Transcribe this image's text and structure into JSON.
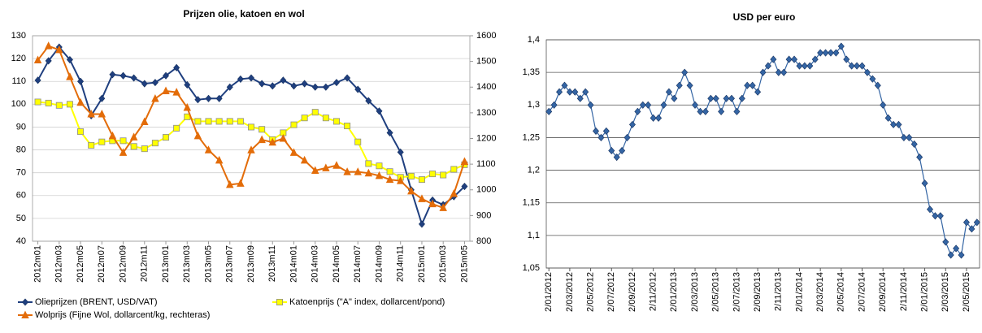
{
  "chart_data": [
    {
      "type": "line",
      "title": "Prijzen olie, katoen en wol",
      "categories": [
        "2012m01",
        null,
        "2012m03",
        null,
        "2012m05",
        null,
        "2012m07",
        null,
        "2012m09",
        null,
        "2012m11",
        null,
        "2013m01",
        null,
        "2013m03",
        null,
        "2013m05",
        null,
        "2013m07",
        null,
        "2013m09",
        null,
        "2013m11",
        null,
        "2014m01",
        null,
        "2014m03",
        null,
        "2014m05",
        null,
        "2014m07",
        null,
        "2014m09",
        null,
        "2014m11",
        null,
        "2015m01",
        null,
        "2015m03",
        null,
        "2015m05"
      ],
      "series": [
        {
          "name": "Olieprijzen (BRENT, USD/VAT)",
          "color": "#1f3f7f",
          "marker": "diamond",
          "values": [
            110.5,
            119,
            125,
            119.5,
            110,
            95,
            102.5,
            113,
            112.5,
            111.5,
            109,
            109.5,
            112.5,
            116,
            108.5,
            102,
            102.5,
            102.5,
            107.5,
            111,
            111.5,
            109,
            108,
            110.5,
            108,
            109,
            107.5,
            107.5,
            109.5,
            111.5,
            106.5,
            101.5,
            97,
            87.5,
            79,
            62.5,
            47.5,
            58,
            56,
            59.5,
            64
          ]
        },
        {
          "name": "Katoenprijs (\"A\" index, dollarcent/pond)",
          "color": "#ffff00",
          "marker": "square",
          "values": [
            101,
            100.5,
            99.5,
            100,
            88,
            82,
            83.5,
            84,
            84,
            81.5,
            80.5,
            83,
            85.5,
            89.5,
            94.5,
            92.5,
            92.5,
            92.5,
            92.5,
            92.5,
            90,
            89,
            84.5,
            87.5,
            91,
            94,
            96.5,
            94,
            92.5,
            90.5,
            83.5,
            74,
            73,
            70.5,
            68,
            68.5,
            67,
            69.5,
            69,
            71.5,
            73.5
          ]
        },
        {
          "name": "Wolprijs (Fijne Wol, dollarcent/kg, rechteras)",
          "color": "#e36c09",
          "marker": "triangle",
          "axis": "y2",
          "values": [
            1505,
            1560,
            1545,
            1440,
            1340,
            1295,
            1295,
            1210,
            1145,
            1205,
            1265,
            1355,
            1385,
            1380,
            1320,
            1210,
            1155,
            1115,
            1020,
            1025,
            1155,
            1195,
            1185,
            1200,
            1145,
            1115,
            1075,
            1085,
            1095,
            1070,
            1070,
            1065,
            1055,
            1040,
            1035,
            995,
            965,
            945,
            930,
            985,
            1110
          ]
        }
      ],
      "ylim": [
        40,
        130
      ],
      "yticks": [
        40,
        50,
        60,
        70,
        80,
        90,
        100,
        110,
        120,
        130
      ],
      "y2lim": [
        800,
        1600
      ],
      "y2ticks": [
        800,
        900,
        1000,
        1100,
        1200,
        1300,
        1400,
        1500,
        1600
      ],
      "grid": true,
      "legend": "bottom"
    },
    {
      "type": "line",
      "title": "USD per euro",
      "categories": [
        "2/01/2012",
        null,
        null,
        null,
        "2/03/2012",
        null,
        null,
        null,
        "2/05/2012",
        null,
        null,
        null,
        "2/07/2012",
        null,
        null,
        null,
        "2/09/2012",
        null,
        null,
        null,
        "2/11/2012",
        null,
        null,
        null,
        "2/01/2013",
        null,
        null,
        null,
        "2/03/2013",
        null,
        null,
        null,
        "2/05/2013",
        null,
        null,
        null,
        "2/07/2013",
        null,
        null,
        null,
        "2/09/2013",
        null,
        null,
        null,
        "2/11/2013",
        null,
        null,
        null,
        "2/01/2014",
        null,
        null,
        null,
        "2/03/2014",
        null,
        null,
        null,
        "2/05/2014",
        null,
        null,
        null,
        "2/07/2014",
        null,
        null,
        null,
        "2/09/2014",
        null,
        null,
        null,
        "2/11/2014",
        null,
        null,
        null,
        "2/01/2015",
        null,
        null,
        null,
        "2/03/2015",
        null,
        null,
        null,
        "2/05/2015",
        null,
        null
      ],
      "values": [
        1.29,
        1.3,
        1.32,
        1.33,
        1.32,
        1.32,
        1.31,
        1.32,
        1.3,
        1.26,
        1.25,
        1.26,
        1.23,
        1.22,
        1.23,
        1.25,
        1.27,
        1.29,
        1.3,
        1.3,
        1.28,
        1.28,
        1.3,
        1.32,
        1.31,
        1.33,
        1.35,
        1.33,
        1.3,
        1.29,
        1.29,
        1.31,
        1.31,
        1.29,
        1.31,
        1.31,
        1.29,
        1.31,
        1.33,
        1.33,
        1.32,
        1.35,
        1.36,
        1.37,
        1.35,
        1.35,
        1.37,
        1.37,
        1.36,
        1.36,
        1.36,
        1.37,
        1.38,
        1.38,
        1.38,
        1.38,
        1.39,
        1.37,
        1.36,
        1.36,
        1.36,
        1.35,
        1.34,
        1.33,
        1.3,
        1.28,
        1.27,
        1.27,
        1.25,
        1.25,
        1.24,
        1.22,
        1.18,
        1.14,
        1.13,
        1.13,
        1.09,
        1.07,
        1.08,
        1.07,
        1.12,
        1.11,
        1.12
      ],
      "color": "#3465a4",
      "marker": "diamond",
      "ylim": [
        1.05,
        1.4
      ],
      "yticks": [
        {
          "value": 1.05,
          "label": "1,05"
        },
        {
          "value": 1.1,
          "label": "1,1"
        },
        {
          "value": 1.15,
          "label": "1,15"
        },
        {
          "value": 1.2,
          "label": "1,2"
        },
        {
          "value": 1.25,
          "label": "1,25"
        },
        {
          "value": 1.3,
          "label": "1,3"
        },
        {
          "value": 1.35,
          "label": "1,35"
        },
        {
          "value": 1.4,
          "label": "1,4"
        }
      ],
      "grid": true
    }
  ]
}
